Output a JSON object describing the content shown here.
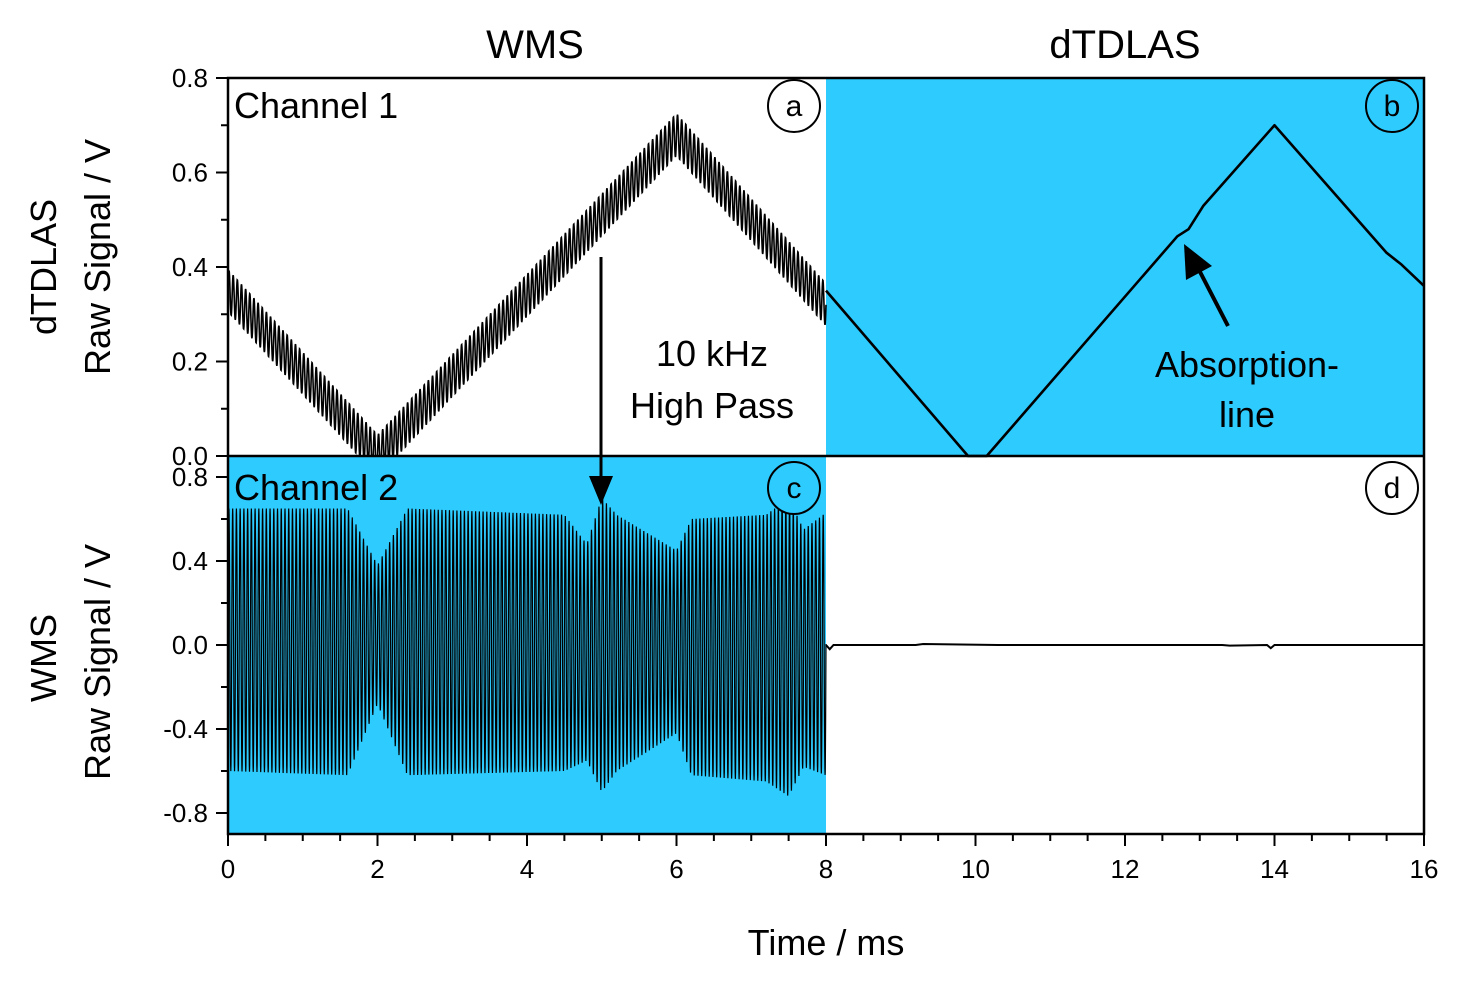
{
  "column_titles": {
    "left": "WMS",
    "right": "dTDLAS"
  },
  "colors": {
    "highlight": "#2ECBFF",
    "trace": "#000000",
    "axis": "#000000",
    "background": "#ffffff"
  },
  "chart_data": [
    {
      "id": "a",
      "type": "line",
      "row": "top",
      "label": "Channel 1",
      "background": "white",
      "description_of_trace": "triangular ramp with dense 10 kHz-range sinusoidal modulation",
      "xlim": [
        0,
        8
      ],
      "ylim": [
        0,
        0.8
      ],
      "ramp_points": {
        "x": [
          0,
          2,
          6,
          8
        ],
        "y": [
          0.35,
          0.0,
          0.68,
          0.32
        ]
      },
      "modulation_amplitude": 0.045
    },
    {
      "id": "b",
      "type": "line",
      "row": "top",
      "background": "highlight",
      "xlim": [
        8,
        16
      ],
      "ylim": [
        0,
        0.8
      ],
      "series": [
        {
          "x": [
            8,
            9.9,
            10.15,
            12.7,
            12.85,
            13.05,
            14,
            15.5,
            15.7,
            16
          ],
          "y": [
            0.35,
            0.0,
            0.0,
            0.465,
            0.48,
            0.53,
            0.7,
            0.43,
            0.405,
            0.36
          ]
        }
      ],
      "annotation": {
        "text_lines": [
          "Absorption-",
          "line"
        ],
        "points_to": {
          "x": 12.78,
          "y": 0.47
        }
      }
    },
    {
      "id": "c",
      "type": "line",
      "row": "bottom",
      "label": "Channel 2",
      "background": "highlight",
      "xlim": [
        0,
        8
      ],
      "ylim": [
        -0.9,
        0.9
      ],
      "yticks": [
        -0.8,
        -0.4,
        0.0,
        0.4,
        0.8
      ],
      "envelope": {
        "x": [
          0,
          1.6,
          2.0,
          2.4,
          4.5,
          4.8,
          5.0,
          5.2,
          6.0,
          6.2,
          7.2,
          7.5,
          7.7,
          8.0
        ],
        "upper": [
          0.65,
          0.65,
          0.38,
          0.65,
          0.62,
          0.48,
          0.7,
          0.62,
          0.45,
          0.6,
          0.62,
          0.7,
          0.55,
          0.63
        ],
        "lower": [
          -0.6,
          -0.62,
          -0.28,
          -0.62,
          -0.6,
          -0.55,
          -0.7,
          -0.6,
          -0.42,
          -0.62,
          -0.65,
          -0.72,
          -0.58,
          -0.62
        ]
      },
      "annotation": {
        "text_lines": [
          "10 kHz",
          "High Pass"
        ],
        "arrow_x": 5.0
      }
    },
    {
      "id": "d",
      "type": "line",
      "row": "bottom",
      "background": "white",
      "xlim": [
        8,
        16
      ],
      "ylim": [
        -0.9,
        0.9
      ],
      "series": [
        {
          "x": [
            8.0,
            8.05,
            8.1,
            9.2,
            9.3,
            10.3,
            12.2,
            13.3,
            13.4,
            13.9,
            13.95,
            14.0,
            14.1,
            15.0,
            16.0
          ],
          "y": [
            0.0,
            -0.02,
            0.0,
            0.0,
            0.005,
            0.0,
            0.0,
            0.0,
            -0.003,
            0.0,
            -0.015,
            0.0,
            0.0,
            0.0,
            0.0
          ]
        }
      ]
    }
  ],
  "axes": {
    "x_label": "Time / ms",
    "x_ticks": [
      "0",
      "2",
      "4",
      "6",
      "8",
      "10",
      "12",
      "14",
      "16"
    ],
    "x_range": [
      0,
      16
    ],
    "top": {
      "ylabel_line1": "dTDLAS",
      "ylabel_line2": "Raw Signal / V",
      "ticks": [
        "0.0",
        "0.2",
        "0.4",
        "0.6",
        "0.8"
      ],
      "range": [
        0,
        0.8
      ]
    },
    "bottom": {
      "ylabel_line1": "WMS",
      "ylabel_line2": "Raw Signal / V",
      "ticks": [
        "-0.8",
        "-0.4",
        "0.0",
        "0.4",
        "0.8"
      ],
      "range": [
        -0.9,
        0.9
      ]
    }
  },
  "panel_letters": [
    "a",
    "b",
    "c",
    "d"
  ],
  "annotations": {
    "channel1": "Channel 1",
    "channel2": "Channel 2",
    "high_pass_line1": "10 kHz",
    "high_pass_line2": "High Pass",
    "absorption_line1": "Absorption-",
    "absorption_line2": "line"
  }
}
